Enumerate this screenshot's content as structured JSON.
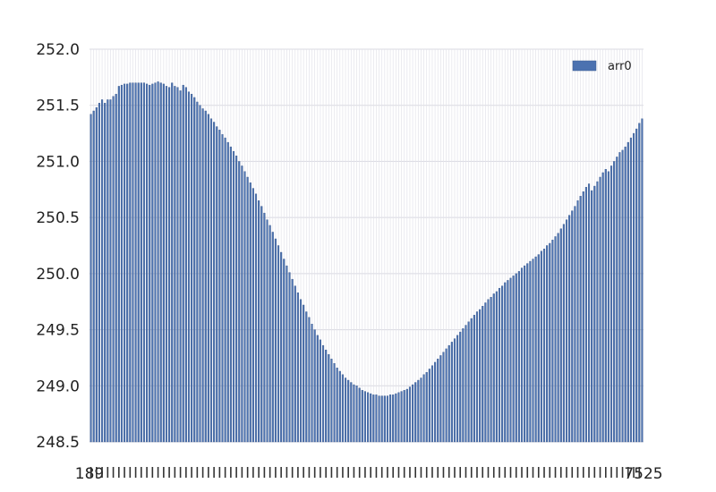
{
  "chart_data": {
    "type": "bar",
    "title": "",
    "xlabel": "",
    "ylabel": "",
    "ylim": [
      248.5,
      252.0
    ],
    "yticks": [
      "248.5",
      "249.0",
      "249.5",
      "250.0",
      "250.5",
      "251.0",
      "251.5",
      "252.0"
    ],
    "grid": true,
    "legend_position": "top-right",
    "x_tick_labels_left": "189",
    "x_tick_labels_right": "7525",
    "series": [
      {
        "name": "arr0",
        "color": "#4c72b0",
        "values": [
          251.42,
          251.45,
          251.48,
          251.52,
          251.55,
          251.52,
          251.55,
          251.55,
          251.58,
          251.6,
          251.67,
          251.68,
          251.69,
          251.69,
          251.7,
          251.7,
          251.7,
          251.7,
          251.7,
          251.7,
          251.69,
          251.68,
          251.69,
          251.7,
          251.71,
          251.7,
          251.69,
          251.67,
          251.66,
          251.7,
          251.67,
          251.66,
          251.63,
          251.68,
          251.66,
          251.62,
          251.6,
          251.57,
          251.53,
          251.5,
          251.47,
          251.45,
          251.42,
          251.38,
          251.35,
          251.31,
          251.28,
          251.24,
          251.21,
          251.17,
          251.13,
          251.09,
          251.05,
          251.0,
          250.96,
          250.91,
          250.86,
          250.81,
          250.76,
          250.71,
          250.65,
          250.6,
          250.54,
          250.48,
          250.43,
          250.37,
          250.31,
          250.25,
          250.19,
          250.13,
          250.07,
          250.01,
          249.95,
          249.89,
          249.83,
          249.77,
          249.72,
          249.66,
          249.61,
          249.55,
          249.5,
          249.45,
          249.41,
          249.36,
          249.32,
          249.28,
          249.24,
          249.2,
          249.16,
          249.13,
          249.1,
          249.07,
          249.05,
          249.03,
          249.01,
          249.0,
          248.98,
          248.96,
          248.95,
          248.94,
          248.93,
          248.92,
          248.92,
          248.91,
          248.91,
          248.91,
          248.91,
          248.92,
          248.92,
          248.93,
          248.94,
          248.95,
          248.96,
          248.97,
          248.99,
          249.01,
          249.03,
          249.05,
          249.07,
          249.1,
          249.12,
          249.15,
          249.18,
          249.21,
          249.24,
          249.27,
          249.3,
          249.33,
          249.36,
          249.39,
          249.42,
          249.45,
          249.48,
          249.51,
          249.54,
          249.57,
          249.6,
          249.63,
          249.66,
          249.68,
          249.71,
          249.74,
          249.77,
          249.79,
          249.82,
          249.84,
          249.87,
          249.89,
          249.92,
          249.94,
          249.96,
          249.98,
          250.0,
          250.02,
          250.05,
          250.07,
          250.09,
          250.11,
          250.13,
          250.15,
          250.17,
          250.2,
          250.22,
          250.25,
          250.27,
          250.3,
          250.33,
          250.36,
          250.4,
          250.44,
          250.48,
          250.52,
          250.56,
          250.6,
          250.65,
          250.69,
          250.73,
          250.77,
          250.8,
          250.74,
          250.78,
          250.82,
          250.86,
          250.9,
          250.93,
          250.91,
          250.96,
          251.0,
          251.04,
          251.08,
          251.1,
          251.13,
          251.17,
          251.21,
          251.25,
          251.29,
          251.34,
          251.38
        ]
      }
    ]
  }
}
